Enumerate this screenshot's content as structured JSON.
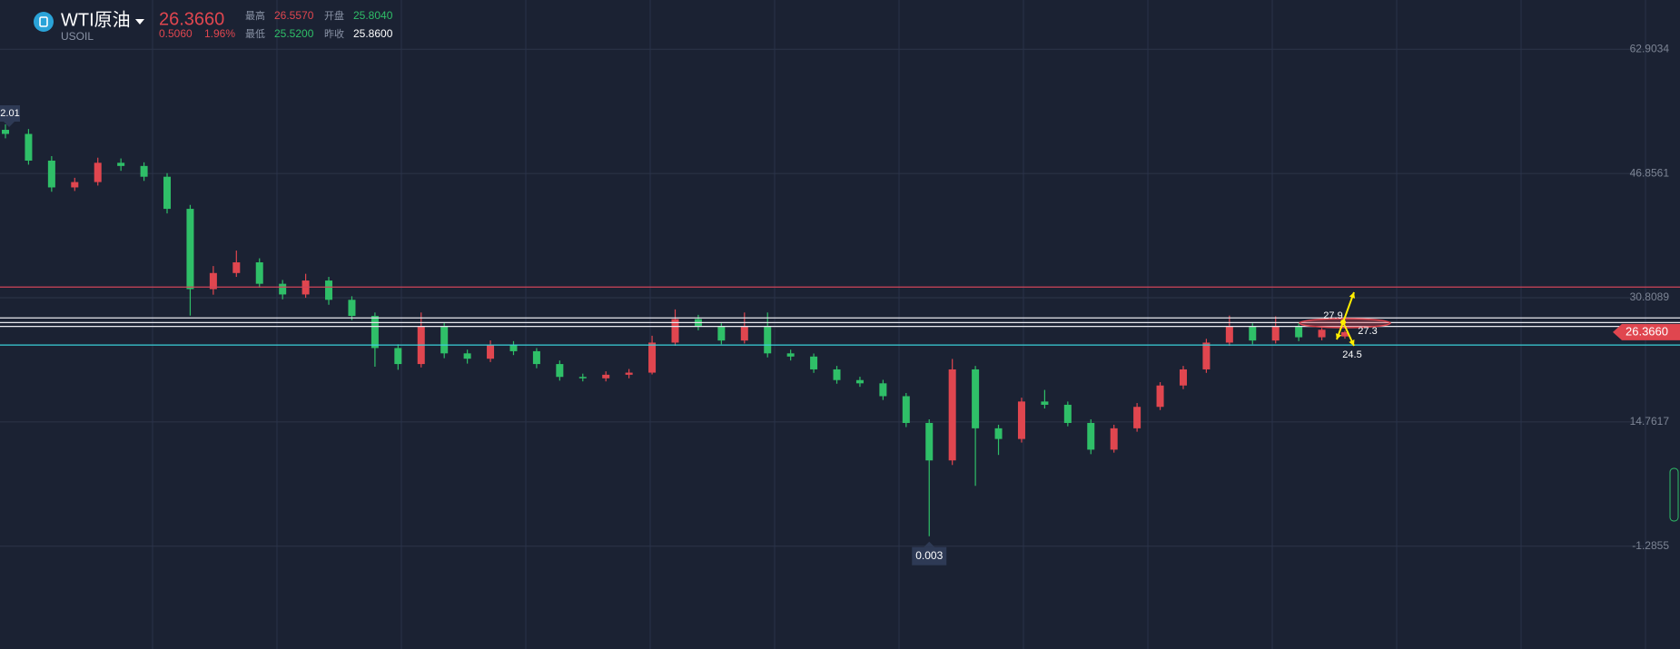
{
  "chart_data": {
    "type": "candlestick",
    "quote": {
      "title": "WTI原油",
      "symbol": "USOIL",
      "last": "26.3660",
      "change": "0.5060",
      "change_pct": "1.96%",
      "high_label": "最高",
      "high": "26.5570",
      "open_label": "开盘",
      "open": "25.8040",
      "low_label": "最低",
      "low": "25.5200",
      "prev_close_label": "昨收",
      "prev_close": "25.8600"
    },
    "ylim": [
      -14.57,
      69.27
    ],
    "yticks": [
      -1.2855,
      14.7617,
      30.8089,
      46.8561,
      62.9034
    ],
    "grid": true,
    "up_color": "#e0464f",
    "down_color": "#2fbf68",
    "levels": [
      {
        "value": 32.19,
        "color": "#d0455a"
      },
      {
        "value": 28.2,
        "color": "#e8e8ee"
      },
      {
        "value": 27.6,
        "color": "#e8e8ee"
      },
      {
        "value": 27.1,
        "color": "#e8e8ee"
      },
      {
        "value": 24.7,
        "color": "#3ad0d8"
      }
    ],
    "annotations": [
      "2.01",
      "27.9",
      "27.3",
      "24.5"
    ],
    "candles": [
      [
        52.5,
        53.2,
        51.4,
        51.97
      ],
      [
        51.97,
        52.6,
        48.0,
        48.52
      ],
      [
        48.52,
        49.1,
        44.5,
        45.06
      ],
      [
        45.06,
        46.3,
        44.6,
        45.75
      ],
      [
        45.75,
        48.9,
        45.3,
        48.24
      ],
      [
        48.24,
        48.8,
        47.2,
        47.83
      ],
      [
        47.83,
        48.3,
        45.9,
        46.44
      ],
      [
        46.44,
        46.9,
        41.7,
        42.29
      ],
      [
        42.29,
        42.8,
        28.5,
        31.92
      ],
      [
        31.92,
        34.9,
        31.2,
        34.0
      ],
      [
        34.0,
        36.9,
        33.5,
        35.38
      ],
      [
        35.38,
        35.9,
        32.1,
        32.61
      ],
      [
        32.61,
        33.1,
        30.6,
        31.23
      ],
      [
        31.23,
        33.9,
        30.8,
        33.03
      ],
      [
        33.03,
        33.5,
        29.9,
        30.54
      ],
      [
        30.54,
        31.0,
        27.9,
        28.46
      ],
      [
        28.46,
        28.9,
        21.9,
        24.31
      ],
      [
        24.31,
        24.8,
        21.5,
        22.24
      ],
      [
        22.24,
        28.9,
        21.8,
        27.08
      ],
      [
        27.08,
        27.6,
        23.0,
        23.62
      ],
      [
        23.62,
        24.1,
        22.3,
        22.93
      ],
      [
        22.93,
        25.3,
        22.5,
        24.73
      ],
      [
        24.73,
        25.2,
        23.4,
        23.9
      ],
      [
        23.9,
        24.3,
        21.7,
        22.24
      ],
      [
        22.24,
        22.7,
        20.1,
        20.58
      ],
      [
        20.58,
        21.0,
        20.0,
        20.4
      ],
      [
        20.4,
        21.3,
        20.0,
        20.86
      ],
      [
        20.86,
        21.6,
        20.4,
        21.13
      ],
      [
        21.13,
        25.9,
        20.9,
        25.01
      ],
      [
        25.01,
        29.3,
        24.6,
        28.05
      ],
      [
        28.05,
        28.6,
        26.6,
        27.08
      ],
      [
        27.08,
        27.5,
        24.8,
        25.28
      ],
      [
        25.28,
        28.9,
        24.9,
        27.08
      ],
      [
        27.08,
        28.9,
        23.1,
        23.62
      ],
      [
        23.62,
        24.1,
        22.7,
        23.21
      ],
      [
        23.21,
        23.6,
        21.1,
        21.55
      ],
      [
        21.55,
        22.0,
        19.7,
        20.17
      ],
      [
        20.17,
        20.6,
        19.3,
        19.75
      ],
      [
        19.75,
        20.2,
        17.6,
        18.09
      ],
      [
        18.09,
        18.5,
        14.1,
        14.63
      ],
      [
        14.63,
        15.1,
        0.003,
        9.79
      ],
      [
        9.79,
        22.9,
        9.2,
        21.55
      ],
      [
        21.55,
        22.0,
        6.5,
        13.94
      ],
      [
        13.94,
        14.4,
        10.5,
        12.56
      ],
      [
        12.56,
        17.9,
        12.1,
        17.4
      ],
      [
        17.4,
        18.9,
        16.5,
        16.98
      ],
      [
        16.98,
        17.4,
        14.2,
        14.63
      ],
      [
        14.63,
        15.1,
        10.6,
        11.18
      ],
      [
        11.18,
        14.4,
        10.8,
        13.94
      ],
      [
        13.94,
        17.2,
        13.5,
        16.71
      ],
      [
        16.71,
        19.9,
        16.3,
        19.47
      ],
      [
        19.47,
        22.0,
        19.0,
        21.55
      ],
      [
        21.55,
        25.5,
        21.1,
        25.01
      ],
      [
        25.01,
        28.5,
        24.6,
        27.08
      ],
      [
        27.08,
        27.5,
        24.8,
        25.28
      ],
      [
        25.28,
        28.4,
        24.9,
        27.08
      ],
      [
        27.08,
        27.5,
        25.2,
        25.7
      ],
      [
        25.7,
        26.9,
        25.3,
        26.67
      ],
      [
        25.804,
        26.557,
        25.52,
        26.366
      ]
    ]
  }
}
